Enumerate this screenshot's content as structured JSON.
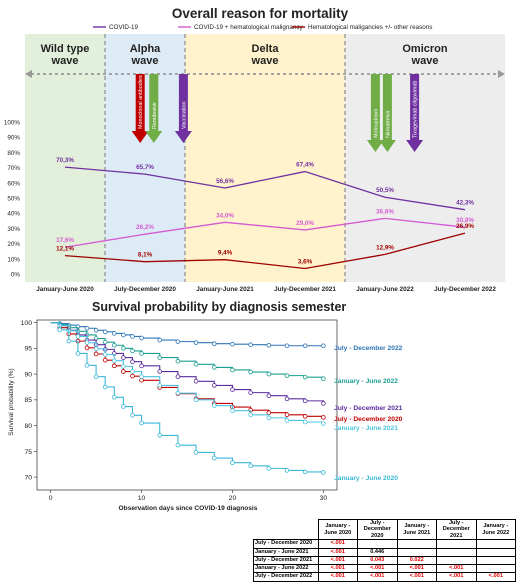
{
  "chart_data": [
    {
      "type": "line",
      "title": "Overall reason for mortality",
      "legend": {
        "position": "top",
        "items": [
          {
            "label": "COVID-19",
            "color": "#7030a0"
          },
          {
            "label": "COVID-19 + hematological malignancy",
            "color": "#d45ad4"
          },
          {
            "label": "Hematological maligancies +/- other reasons",
            "color": "#a00000"
          }
        ]
      },
      "categories": [
        "January-June 2020",
        "July-December 2020",
        "January-June 2021",
        "July-December 2021",
        "January-June 2022",
        "July-December 2022"
      ],
      "series": [
        {
          "name": "COVID-19",
          "color": "#7030a0",
          "values": [
            70.3,
            65.7,
            56.6,
            67.4,
            50.5,
            42.3
          ],
          "labels": [
            "70,3%",
            "65,7%",
            "56,6%",
            "67,4%",
            "50,5%",
            "42,3%"
          ]
        },
        {
          "name": "COVID-19 + hematological malignancy",
          "color": "#d45ad4",
          "values": [
            17.6,
            26.2,
            34.0,
            29.0,
            36.6,
            30.8
          ],
          "labels": [
            "17,6%",
            "26,2%",
            "34,0%",
            "29,0%",
            "36,6%",
            "30,8%"
          ]
        },
        {
          "name": "Hematological maligancies +/- other reasons",
          "color": "#a00000",
          "values": [
            12.1,
            8.1,
            9.4,
            3.6,
            12.9,
            26.9
          ],
          "labels": [
            "12,1%",
            "8,1%",
            "9,4%",
            "3,6%",
            "12,9%",
            "26,9%"
          ]
        }
      ],
      "yticks": [
        "0%",
        "10%",
        "20%",
        "30%",
        "40%",
        "50%",
        "60%",
        "70%",
        "80%",
        "90%",
        "100%"
      ],
      "ylim": [
        0,
        100
      ],
      "waves": [
        {
          "name": [
            "Wild type",
            "wave"
          ],
          "color": "#e2efda",
          "from": -0.5,
          "to": 0.5
        },
        {
          "name": [
            "Alpha",
            "wave"
          ],
          "color": "#ddebf7",
          "from": 0.5,
          "to": 1.5
        },
        {
          "name": [
            "Delta",
            "wave"
          ],
          "color": "#fff2cc",
          "from": 1.5,
          "to": 3.5
        },
        {
          "name": [
            "Omicron",
            "wave"
          ],
          "color": "#ededed",
          "from": 3.5,
          "to": 5.5
        }
      ],
      "interventions": [
        {
          "label": "Monoclonal antibodies",
          "color": "#c00000",
          "at": 0.94,
          "depth": 57
        },
        {
          "label": "Remdesivir",
          "color": "#70ad47",
          "at": 1.11,
          "depth": 57
        },
        {
          "label": "Vaccination",
          "color": "#7030a0",
          "at": 1.48,
          "depth": 57
        },
        {
          "label": "Molnupiravir",
          "color": "#70ad47",
          "at": 3.88,
          "depth": 66
        },
        {
          "label": "Nirmatrelvir",
          "color": "#70ad47",
          "at": 4.03,
          "depth": 66
        },
        {
          "label": "Tixagevimab cilgavimab",
          "color": "#7030a0",
          "at": 4.37,
          "depth": 66
        }
      ]
    },
    {
      "type": "line",
      "title": "Survival probability by diagnosis semester",
      "xlabel": "Observation days since COVID-19 diagnosis",
      "ylabel": "Survival probability (%)",
      "xlim": [
        -1.5,
        31.5
      ],
      "ylim": [
        67.5,
        100.5
      ],
      "xticks": [
        0,
        10,
        20,
        30
      ],
      "yticks": [
        70,
        75,
        80,
        85,
        90,
        95,
        100
      ],
      "series": [
        {
          "name": "July - December 2022",
          "color": "#2e75b6",
          "x": [
            0,
            1,
            2,
            3,
            4,
            5,
            6,
            7,
            8,
            9,
            10,
            12,
            14,
            16,
            18,
            20,
            22,
            24,
            26,
            28,
            30
          ],
          "y": [
            100,
            99.8,
            99.5,
            99.2,
            98.9,
            98.5,
            98.2,
            97.9,
            97.6,
            97.3,
            97.0,
            96.6,
            96.3,
            96.1,
            95.9,
            95.8,
            95.7,
            95.6,
            95.5,
            95.5,
            95.5
          ]
        },
        {
          "name": "January - June 2022",
          "color": "#1a9e91",
          "x": [
            0,
            1,
            2,
            3,
            4,
            5,
            6,
            7,
            8,
            9,
            10,
            12,
            14,
            16,
            18,
            20,
            22,
            24,
            26,
            28,
            30
          ],
          "y": [
            100,
            99.6,
            99.0,
            98.3,
            97.6,
            96.9,
            96.2,
            95.6,
            95.0,
            94.5,
            94.0,
            93.2,
            92.5,
            91.9,
            91.3,
            90.8,
            90.4,
            90.0,
            89.7,
            89.4,
            89.1
          ]
        },
        {
          "name": "July - December 2021",
          "color": "#5b2c9e",
          "x": [
            0,
            1,
            2,
            3,
            4,
            5,
            6,
            7,
            8,
            9,
            10,
            12,
            14,
            16,
            18,
            20,
            22,
            24,
            26,
            28,
            30
          ],
          "y": [
            100,
            99.4,
            98.5,
            97.6,
            96.6,
            95.7,
            94.8,
            94.0,
            93.2,
            92.4,
            91.6,
            90.5,
            89.5,
            88.6,
            87.8,
            87.0,
            86.4,
            85.8,
            85.2,
            84.8,
            84.3
          ]
        },
        {
          "name": "July - December 2020",
          "color": "#c00000",
          "x": [
            0,
            1,
            2,
            3,
            4,
            5,
            6,
            7,
            8,
            9,
            10,
            12,
            14,
            16,
            18,
            20,
            22,
            24,
            26,
            28,
            30
          ],
          "y": [
            100,
            99.0,
            97.8,
            96.4,
            95.1,
            93.9,
            92.7,
            91.6,
            90.5,
            89.6,
            88.8,
            87.4,
            86.2,
            85.2,
            84.3,
            83.6,
            83.0,
            82.5,
            82.1,
            81.8,
            81.6
          ]
        },
        {
          "name": "January - June 2021",
          "color": "#4cc4e0",
          "x": [
            0,
            1,
            2,
            3,
            4,
            5,
            6,
            7,
            8,
            9,
            10,
            12,
            14,
            16,
            18,
            20,
            22,
            24,
            26,
            28,
            30
          ],
          "y": [
            100,
            99.4,
            98.4,
            97.3,
            96.1,
            94.9,
            93.8,
            92.6,
            91.5,
            90.5,
            89.5,
            87.8,
            86.3,
            85.0,
            83.9,
            82.9,
            82.1,
            81.5,
            81.0,
            80.7,
            80.4
          ]
        },
        {
          "name": "January - June 2020",
          "color": "#3ab8d8",
          "x": [
            0,
            1,
            2,
            3,
            4,
            5,
            6,
            7,
            8,
            9,
            10,
            12,
            14,
            16,
            18,
            20,
            22,
            24,
            26,
            28,
            30
          ],
          "y": [
            100,
            98.6,
            96.4,
            94.0,
            91.7,
            89.5,
            87.5,
            85.5,
            83.7,
            82.0,
            80.5,
            78.1,
            76.2,
            74.8,
            73.7,
            72.8,
            72.2,
            71.7,
            71.3,
            71.0,
            70.9
          ]
        }
      ]
    }
  ],
  "pvalue_table": {
    "columns": [
      "January - June 2020",
      "July - December 2020",
      "January - June 2021",
      "July - December 2021",
      "January - June 2022"
    ],
    "rows": [
      {
        "label": "July - December 2020",
        "cells": [
          "<.001",
          "",
          "",
          "",
          ""
        ]
      },
      {
        "label": "January - June 2021",
        "cells": [
          "<.001",
          "0.446",
          "",
          "",
          ""
        ]
      },
      {
        "label": "July - December 2021",
        "cells": [
          "<.001",
          "0.043",
          "0.022",
          "",
          ""
        ]
      },
      {
        "label": "January - June 2022",
        "cells": [
          "<.001",
          "<.001",
          "<.001",
          "<.001",
          ""
        ]
      },
      {
        "label": "July - December 2022",
        "cells": [
          "<.001",
          "<.001",
          "<.001",
          "<.001",
          "<.001"
        ]
      }
    ],
    "significant_color": "#e00000",
    "nonsignificant_color": "#000000",
    "significant_values": [
      "<.001",
      "0.043",
      "0.022"
    ]
  }
}
